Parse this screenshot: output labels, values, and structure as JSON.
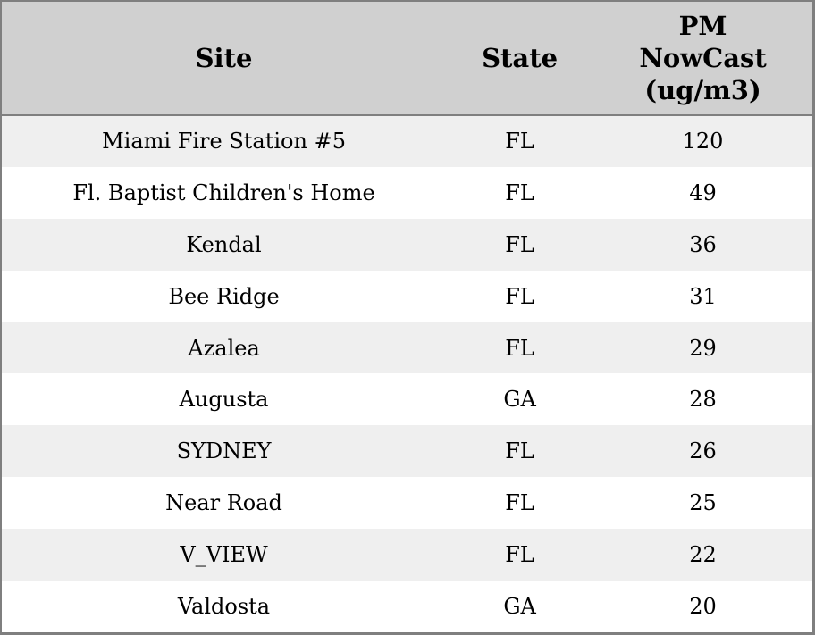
{
  "table": {
    "columns": [
      {
        "key": "site",
        "label": "Site"
      },
      {
        "key": "state",
        "label": "State"
      },
      {
        "key": "pm_nowcast",
        "label": "PM NowCast (ug/m3)"
      }
    ],
    "rows": [
      {
        "site": "Miami Fire Station #5",
        "state": "FL",
        "pm_nowcast": "120"
      },
      {
        "site": "Fl. Baptist Children's Home",
        "state": "FL",
        "pm_nowcast": "49"
      },
      {
        "site": "Kendal",
        "state": "FL",
        "pm_nowcast": "36"
      },
      {
        "site": "Bee Ridge",
        "state": "FL",
        "pm_nowcast": "31"
      },
      {
        "site": "Azalea",
        "state": "FL",
        "pm_nowcast": "29"
      },
      {
        "site": "Augusta",
        "state": "GA",
        "pm_nowcast": "28"
      },
      {
        "site": "SYDNEY",
        "state": "FL",
        "pm_nowcast": "26"
      },
      {
        "site": "Near Road",
        "state": "FL",
        "pm_nowcast": "25"
      },
      {
        "site": "V_VIEW",
        "state": "FL",
        "pm_nowcast": "22"
      },
      {
        "site": "Valdosta",
        "state": "GA",
        "pm_nowcast": "20"
      }
    ]
  },
  "chart_data": {
    "type": "table",
    "title": "",
    "columns": [
      "Site",
      "State",
      "PM NowCast (ug/m3)"
    ],
    "rows": [
      [
        "Miami Fire Station #5",
        "FL",
        120
      ],
      [
        "Fl. Baptist Children's Home",
        "FL",
        49
      ],
      [
        "Kendal",
        "FL",
        36
      ],
      [
        "Bee Ridge",
        "FL",
        31
      ],
      [
        "Azalea",
        "FL",
        29
      ],
      [
        "Augusta",
        "GA",
        28
      ],
      [
        "SYDNEY",
        "FL",
        26
      ],
      [
        "Near Road",
        "FL",
        25
      ],
      [
        "V_VIEW",
        "FL",
        22
      ],
      [
        "Valdosta",
        "GA",
        20
      ]
    ],
    "layout": {
      "striped": true,
      "header_position": "top",
      "text_align": "center"
    }
  },
  "colors": {
    "header_bg": "#d0d0d0",
    "stripe_bg": "#efefef",
    "row_bg": "#ffffff",
    "border": "#7f7f7f",
    "text": "#000000"
  }
}
